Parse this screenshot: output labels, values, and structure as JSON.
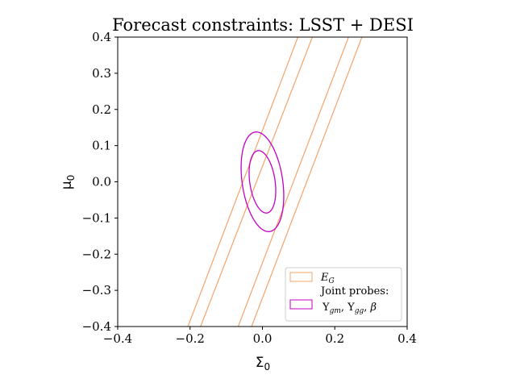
{
  "chart_data": {
    "type": "contour",
    "title": "Forecast constraints: LSST + DESI",
    "xlabel": "Σ",
    "xlabel_sub": "0",
    "ylabel": "μ",
    "ylabel_sub": "0",
    "xlim": [
      -0.4,
      0.4
    ],
    "ylim": [
      -0.4,
      0.4
    ],
    "xticks": [
      "−0.4",
      "−0.2",
      "0.0",
      "0.2",
      "0.4"
    ],
    "xtick_values": [
      -0.4,
      -0.2,
      0.0,
      0.2,
      0.4
    ],
    "yticks": [
      "−0.4",
      "−0.3",
      "−0.2",
      "−0.1",
      "0.0",
      "0.1",
      "0.2",
      "0.3",
      "0.4"
    ],
    "ytick_values": [
      -0.4,
      -0.3,
      -0.2,
      -0.1,
      0.0,
      0.1,
      0.2,
      0.3,
      0.4
    ],
    "grid": false,
    "legend_position": "bottom-right",
    "series": [
      {
        "name": "E",
        "name_sub": "G",
        "color": "#f4a46a",
        "kind": "band",
        "lines": [
          [
            [
              -0.206,
              -0.4
            ],
            [
              0.098,
              0.4
            ]
          ],
          [
            [
              -0.171,
              -0.4
            ],
            [
              0.138,
              0.4
            ]
          ],
          [
            [
              -0.067,
              -0.4
            ],
            [
              0.238,
              0.4
            ]
          ],
          [
            [
              -0.03,
              -0.4
            ],
            [
              0.275,
              0.4
            ]
          ]
        ]
      },
      {
        "name_line1": "Joint probes:",
        "name_line2": "Υ_gm, Υ_gg, β",
        "color": "#c400c4",
        "kind": "ellipse",
        "center": [
          0.0,
          0.0
        ],
        "ellipses": [
          {
            "semi_major": 0.087,
            "semi_minor": 0.035
          },
          {
            "semi_major": 0.139,
            "semi_minor": 0.056
          }
        ],
        "tilt": [
          -0.145,
          0.989
        ]
      }
    ]
  }
}
